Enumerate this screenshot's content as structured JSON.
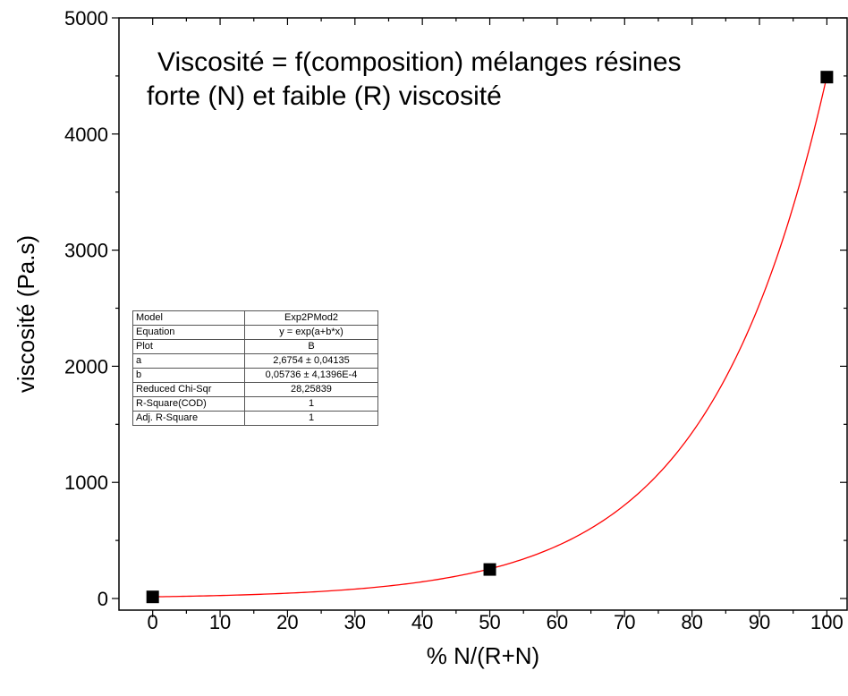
{
  "chart_data": {
    "type": "scatter",
    "title": [
      "Viscosité = f(composition)  mélanges résines",
      "forte (N) et faible (R) viscosité"
    ],
    "xlabel": "% N/(R+N)",
    "ylabel": "viscosité  (Pa.s)",
    "xlim": [
      -5,
      103
    ],
    "ylim": [
      -100,
      5000
    ],
    "xticks": [
      "0",
      "10",
      "20",
      "30",
      "40",
      "50",
      "60",
      "70",
      "80",
      "90",
      "100"
    ],
    "yticks": [
      "0",
      "1000",
      "2000",
      "3000",
      "4000",
      "5000"
    ],
    "grid": false,
    "series": [
      {
        "points": [
          {
            "x": 0,
            "y": 14
          },
          {
            "x": 50,
            "y": 250
          },
          {
            "x": 100,
            "y": 4490
          }
        ]
      }
    ],
    "fit": {
      "model": "y = exp(a+b*x)",
      "a": 2.6754,
      "b": 0.05736,
      "x_range": [
        0,
        100
      ]
    },
    "colors": {
      "points": "#000000",
      "fit_line": "#ff0000",
      "axes": "#000000"
    }
  },
  "fit_table": [
    {
      "key": "Model",
      "value": "Exp2PMod2"
    },
    {
      "key": "Equation",
      "value": "y = exp(a+b*x)"
    },
    {
      "key": "Plot",
      "value": "B"
    },
    {
      "key": "a",
      "value": "2,6754 ± 0,04135"
    },
    {
      "key": "b",
      "value": "0,05736 ± 4,1396E-4"
    },
    {
      "key": "Reduced Chi-Sqr",
      "value": "28,25839"
    },
    {
      "key": "R-Square(COD)",
      "value": "1"
    },
    {
      "key": "Adj. R-Square",
      "value": "1"
    }
  ]
}
